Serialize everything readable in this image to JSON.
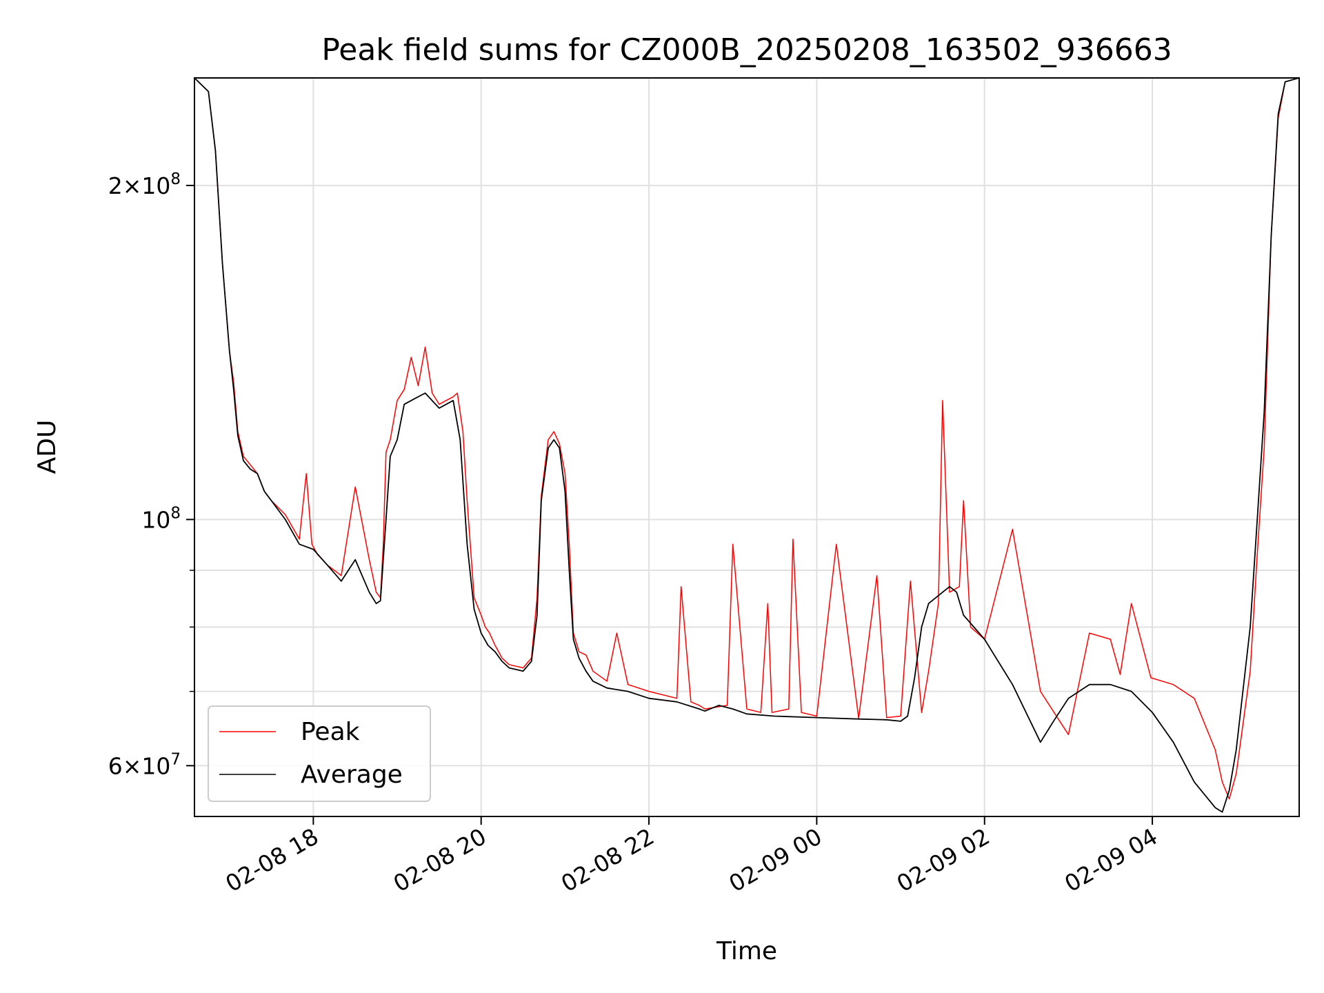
{
  "chart_data": {
    "type": "line",
    "title": "Peak field sums for CZ000B_20250208_163502_936663",
    "xlabel": "Time",
    "ylabel": "ADU",
    "y_scale": "log",
    "grid": true,
    "legend_position": "lower-left",
    "xlim": [
      "2025-02-08 16:35",
      "2025-02-09 05:45"
    ],
    "ylim": [
      54000000,
      250000000
    ],
    "x_ticks": [
      {
        "value": "2025-02-08 18:00",
        "label": "02-08 18"
      },
      {
        "value": "2025-02-08 20:00",
        "label": "02-08 20"
      },
      {
        "value": "2025-02-08 22:00",
        "label": "02-08 22"
      },
      {
        "value": "2025-02-09 00:00",
        "label": "02-09 00"
      },
      {
        "value": "2025-02-09 02:00",
        "label": "02-09 02"
      },
      {
        "value": "2025-02-09 04:00",
        "label": "02-09 04"
      }
    ],
    "y_major_ticks": [
      {
        "value": 60000000,
        "mantissa": "6",
        "exp": "7"
      },
      {
        "value": 100000000,
        "mantissa": "",
        "exp": "8"
      },
      {
        "value": 200000000,
        "mantissa": "2",
        "exp": "8"
      }
    ],
    "y_minor_ticks": [
      70000000,
      80000000,
      90000000
    ],
    "series": [
      {
        "name": "Peak",
        "color": "#ff0000",
        "x": [
          "2025-02-08 16:35",
          "2025-02-08 16:45",
          "2025-02-08 16:50",
          "2025-02-08 16:55",
          "2025-02-08 17:00",
          "2025-02-08 17:03",
          "2025-02-08 17:06",
          "2025-02-08 17:10",
          "2025-02-08 17:15",
          "2025-02-08 17:20",
          "2025-02-08 17:25",
          "2025-02-08 17:30",
          "2025-02-08 17:40",
          "2025-02-08 17:50",
          "2025-02-08 17:55",
          "2025-02-08 17:59",
          "2025-02-08 18:03",
          "2025-02-08 18:10",
          "2025-02-08 18:20",
          "2025-02-08 18:30",
          "2025-02-08 18:40",
          "2025-02-08 18:45",
          "2025-02-08 18:48",
          "2025-02-08 18:50",
          "2025-02-08 18:52",
          "2025-02-08 18:55",
          "2025-02-08 19:00",
          "2025-02-08 19:05",
          "2025-02-08 19:10",
          "2025-02-08 19:15",
          "2025-02-08 19:20",
          "2025-02-08 19:25",
          "2025-02-08 19:30",
          "2025-02-08 19:35",
          "2025-02-08 19:40",
          "2025-02-08 19:43",
          "2025-02-08 19:47",
          "2025-02-08 19:50",
          "2025-02-08 19:55",
          "2025-02-08 20:00",
          "2025-02-08 20:03",
          "2025-02-08 20:06",
          "2025-02-08 20:10",
          "2025-02-08 20:15",
          "2025-02-08 20:20",
          "2025-02-08 20:30",
          "2025-02-08 20:36",
          "2025-02-08 20:40",
          "2025-02-08 20:43",
          "2025-02-08 20:48",
          "2025-02-08 20:52",
          "2025-02-08 20:56",
          "2025-02-08 21:00",
          "2025-02-08 21:03",
          "2025-02-08 21:06",
          "2025-02-08 21:10",
          "2025-02-08 21:15",
          "2025-02-08 21:20",
          "2025-02-08 21:30",
          "2025-02-08 21:37",
          "2025-02-08 21:45",
          "2025-02-08 22:00",
          "2025-02-08 22:20",
          "2025-02-08 22:23",
          "2025-02-08 22:30",
          "2025-02-08 22:36",
          "2025-02-08 22:40",
          "2025-02-08 22:56",
          "2025-02-08 23:00",
          "2025-02-08 23:10",
          "2025-02-08 23:20",
          "2025-02-08 23:25",
          "2025-02-08 23:28",
          "2025-02-08 23:40",
          "2025-02-08 23:43",
          "2025-02-08 23:49",
          "2025-02-09 00:00",
          "2025-02-09 00:14",
          "2025-02-09 00:30",
          "2025-02-09 00:43",
          "2025-02-09 00:50",
          "2025-02-09 01:00",
          "2025-02-09 01:07",
          "2025-02-09 01:15",
          "2025-02-09 01:20",
          "2025-02-09 01:27",
          "2025-02-09 01:30",
          "2025-02-09 01:35",
          "2025-02-09 01:42",
          "2025-02-09 01:45",
          "2025-02-09 01:50",
          "2025-02-09 02:00",
          "2025-02-09 02:20",
          "2025-02-09 02:40",
          "2025-02-09 03:00",
          "2025-02-09 03:15",
          "2025-02-09 03:30",
          "2025-02-09 03:37",
          "2025-02-09 03:45",
          "2025-02-09 03:59",
          "2025-02-09 04:15",
          "2025-02-09 04:30",
          "2025-02-09 04:45",
          "2025-02-09 04:50",
          "2025-02-09 04:55",
          "2025-02-09 05:00",
          "2025-02-09 05:10",
          "2025-02-09 05:15",
          "2025-02-09 05:20",
          "2025-02-09 05:25",
          "2025-02-09 05:30",
          "2025-02-09 05:35",
          "2025-02-09 05:45"
        ],
        "values": [
          250000000,
          243000000,
          215000000,
          170000000,
          142000000,
          133000000,
          120000000,
          114000000,
          112000000,
          110000000,
          106000000,
          104000000,
          101000000,
          96000000,
          110000000,
          95000000,
          93000000,
          91000000,
          89000000,
          107000000,
          92000000,
          86000000,
          85000000,
          95000000,
          115000000,
          118000000,
          128000000,
          131000000,
          140000000,
          132000000,
          143000000,
          130000000,
          127000000,
          128000000,
          129000000,
          130000000,
          120000000,
          104000000,
          85000000,
          82000000,
          80000000,
          79000000,
          77000000,
          75000000,
          74000000,
          73500000,
          75000000,
          85000000,
          105000000,
          118000000,
          120000000,
          117000000,
          110000000,
          95000000,
          79000000,
          76000000,
          75500000,
          73000000,
          71500000,
          79000000,
          71000000,
          70000000,
          69000000,
          87000000,
          68500000,
          68000000,
          67500000,
          68000000,
          95000000,
          67500000,
          67000000,
          84000000,
          67000000,
          67500000,
          96000000,
          67000000,
          66500000,
          95000000,
          66200000,
          89000000,
          66300000,
          66500000,
          88000000,
          67000000,
          73000000,
          84000000,
          128000000,
          86000000,
          87000000,
          104000000,
          80000000,
          78000000,
          98000000,
          70000000,
          64000000,
          79000000,
          78000000,
          72500000,
          84000000,
          72000000,
          71000000,
          69000000,
          62000000,
          58000000,
          56000000,
          59000000,
          73000000,
          93000000,
          116000000,
          180000000,
          230000000,
          248000000,
          250000000
        ]
      },
      {
        "name": "Average",
        "color": "#000000",
        "x": [
          "2025-02-08 16:35",
          "2025-02-08 16:45",
          "2025-02-08 16:50",
          "2025-02-08 16:55",
          "2025-02-08 17:00",
          "2025-02-08 17:03",
          "2025-02-08 17:06",
          "2025-02-08 17:10",
          "2025-02-08 17:15",
          "2025-02-08 17:20",
          "2025-02-08 17:25",
          "2025-02-08 17:30",
          "2025-02-08 17:40",
          "2025-02-08 17:50",
          "2025-02-08 18:00",
          "2025-02-08 18:10",
          "2025-02-08 18:20",
          "2025-02-08 18:30",
          "2025-02-08 18:40",
          "2025-02-08 18:45",
          "2025-02-08 18:48",
          "2025-02-08 18:52",
          "2025-02-08 18:55",
          "2025-02-08 19:00",
          "2025-02-08 19:05",
          "2025-02-08 19:10",
          "2025-02-08 19:20",
          "2025-02-08 19:30",
          "2025-02-08 19:35",
          "2025-02-08 19:40",
          "2025-02-08 19:45",
          "2025-02-08 19:50",
          "2025-02-08 19:55",
          "2025-02-08 20:00",
          "2025-02-08 20:05",
          "2025-02-08 20:10",
          "2025-02-08 20:15",
          "2025-02-08 20:20",
          "2025-02-08 20:30",
          "2025-02-08 20:36",
          "2025-02-08 20:40",
          "2025-02-08 20:43",
          "2025-02-08 20:48",
          "2025-02-08 20:52",
          "2025-02-08 20:56",
          "2025-02-08 21:00",
          "2025-02-08 21:03",
          "2025-02-08 21:06",
          "2025-02-08 21:10",
          "2025-02-08 21:15",
          "2025-02-08 21:20",
          "2025-02-08 21:30",
          "2025-02-08 21:45",
          "2025-02-08 22:00",
          "2025-02-08 22:20",
          "2025-02-08 22:36",
          "2025-02-08 22:40",
          "2025-02-08 22:50",
          "2025-02-08 23:00",
          "2025-02-08 23:10",
          "2025-02-08 23:30",
          "2025-02-09 00:00",
          "2025-02-09 00:30",
          "2025-02-09 00:50",
          "2025-02-09 01:00",
          "2025-02-09 01:05",
          "2025-02-09 01:10",
          "2025-02-09 01:15",
          "2025-02-09 01:20",
          "2025-02-09 01:30",
          "2025-02-09 01:35",
          "2025-02-09 01:40",
          "2025-02-09 01:45",
          "2025-02-09 02:00",
          "2025-02-09 02:20",
          "2025-02-09 02:40",
          "2025-02-09 02:50",
          "2025-02-09 03:00",
          "2025-02-09 03:15",
          "2025-02-09 03:30",
          "2025-02-09 03:45",
          "2025-02-09 04:00",
          "2025-02-09 04:15",
          "2025-02-09 04:30",
          "2025-02-09 04:45",
          "2025-02-09 04:50",
          "2025-02-09 04:55",
          "2025-02-09 05:00",
          "2025-02-09 05:10",
          "2025-02-09 05:15",
          "2025-02-09 05:20",
          "2025-02-09 05:25",
          "2025-02-09 05:30",
          "2025-02-09 05:35",
          "2025-02-09 05:45"
        ],
        "values": [
          250000000,
          243000000,
          215000000,
          170000000,
          142000000,
          131000000,
          119000000,
          113000000,
          111000000,
          110000000,
          106000000,
          104000000,
          100000000,
          95000000,
          94000000,
          91000000,
          88000000,
          92000000,
          86000000,
          84000000,
          84500000,
          100000000,
          114000000,
          118000000,
          127000000,
          128000000,
          130000000,
          126000000,
          127000000,
          128000000,
          118000000,
          95000000,
          83000000,
          79000000,
          77000000,
          76000000,
          74500000,
          73500000,
          73000000,
          74500000,
          82000000,
          104000000,
          116000000,
          118000000,
          116000000,
          106000000,
          90000000,
          78000000,
          75000000,
          73000000,
          71500000,
          70500000,
          70000000,
          69000000,
          68500000,
          67500000,
          67200000,
          68000000,
          67500000,
          66800000,
          66500000,
          66300000,
          66100000,
          66000000,
          65800000,
          66500000,
          72000000,
          80000000,
          84000000,
          86000000,
          87000000,
          86000000,
          82000000,
          78000000,
          71000000,
          63000000,
          66000000,
          69000000,
          71000000,
          71000000,
          70000000,
          67000000,
          63000000,
          58000000,
          55000000,
          54500000,
          57000000,
          62000000,
          80000000,
          100000000,
          125000000,
          180000000,
          232000000,
          248000000,
          250000000
        ]
      }
    ]
  }
}
